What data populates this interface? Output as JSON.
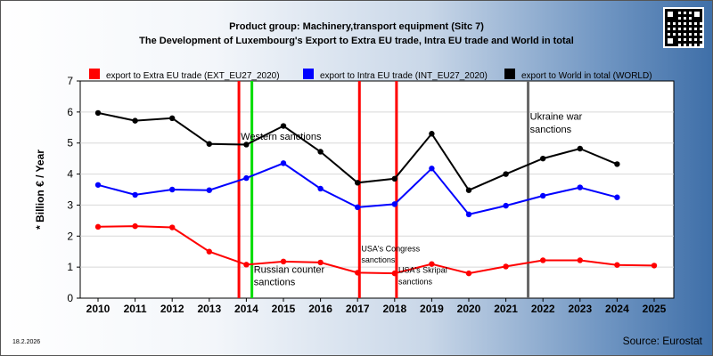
{
  "header": {
    "title_line1": "Product group: Machinery,transport equipment (Sitc 7)",
    "title_line2": "The Development of Luxembourg's Export to Extra EU trade, Intra EU trade and World in total"
  },
  "footer": {
    "date": "18.2.2026",
    "source": "Source: Eurostat"
  },
  "chart_data": {
    "type": "line",
    "ylabel": "* Billion € / Year",
    "ylim": [
      0,
      7
    ],
    "yticks": [
      0,
      1,
      2,
      3,
      4,
      5,
      6,
      7
    ],
    "categories": [
      "2010",
      "2011",
      "2012",
      "2013",
      "2014",
      "2015",
      "2016",
      "2017",
      "2018",
      "2019",
      "2020",
      "2021",
      "2022",
      "2023",
      "2024",
      "2025"
    ],
    "grid": true,
    "legend_position": "top",
    "series": [
      {
        "name": "export to Extra EU trade (EXT_EU27_2020)",
        "color": "#ff0000",
        "values": [
          2.3,
          2.32,
          2.28,
          1.5,
          1.08,
          1.18,
          1.15,
          0.82,
          0.8,
          1.1,
          0.8,
          1.02,
          1.22,
          1.22,
          1.07,
          1.05
        ]
      },
      {
        "name": "export to Intra EU trade (INT_EU27_2020)",
        "color": "#0000ff",
        "values": [
          3.65,
          3.33,
          3.5,
          3.48,
          3.87,
          4.35,
          3.53,
          2.93,
          3.03,
          4.18,
          2.7,
          2.98,
          3.3,
          3.57,
          3.25,
          null
        ]
      },
      {
        "name": "export to World in total (WORLD)",
        "color": "#000000",
        "values": [
          5.97,
          5.72,
          5.8,
          4.97,
          4.95,
          5.55,
          4.72,
          3.72,
          3.85,
          5.3,
          3.48,
          4.0,
          4.5,
          4.82,
          4.32,
          null
        ]
      }
    ],
    "events": [
      {
        "position": 2013.8,
        "color": "#ff0000",
        "label": ""
      },
      {
        "position": 2014.15,
        "color": "#00dd00",
        "label": ""
      },
      {
        "position": 2017.05,
        "color": "#ff0000",
        "label": ""
      },
      {
        "position": 2018.05,
        "color": "#ff0000",
        "label": ""
      },
      {
        "position": 2021.6,
        "color": "#666666",
        "label": ""
      }
    ],
    "annotations": [
      {
        "text": "Western sanctions",
        "x": 2013.85,
        "y": 5.1,
        "size": 11
      },
      {
        "text": "Russian counter",
        "x": 2014.2,
        "y": 0.82,
        "size": 11
      },
      {
        "text": "sanctions",
        "x": 2014.2,
        "y": 0.42,
        "size": 11
      },
      {
        "text": "USA's Congress",
        "x": 2017.1,
        "y": 1.5,
        "size": 9
      },
      {
        "text": "sanctions",
        "x": 2017.1,
        "y": 1.15,
        "size": 9
      },
      {
        "text": "USA's Skripal",
        "x": 2018.1,
        "y": 0.82,
        "size": 9
      },
      {
        "text": "sanctions",
        "x": 2018.1,
        "y": 0.45,
        "size": 9
      },
      {
        "text": "Ukraine war",
        "x": 2021.65,
        "y": 5.75,
        "size": 11
      },
      {
        "text": "sanctions",
        "x": 2021.65,
        "y": 5.33,
        "size": 11
      }
    ]
  }
}
